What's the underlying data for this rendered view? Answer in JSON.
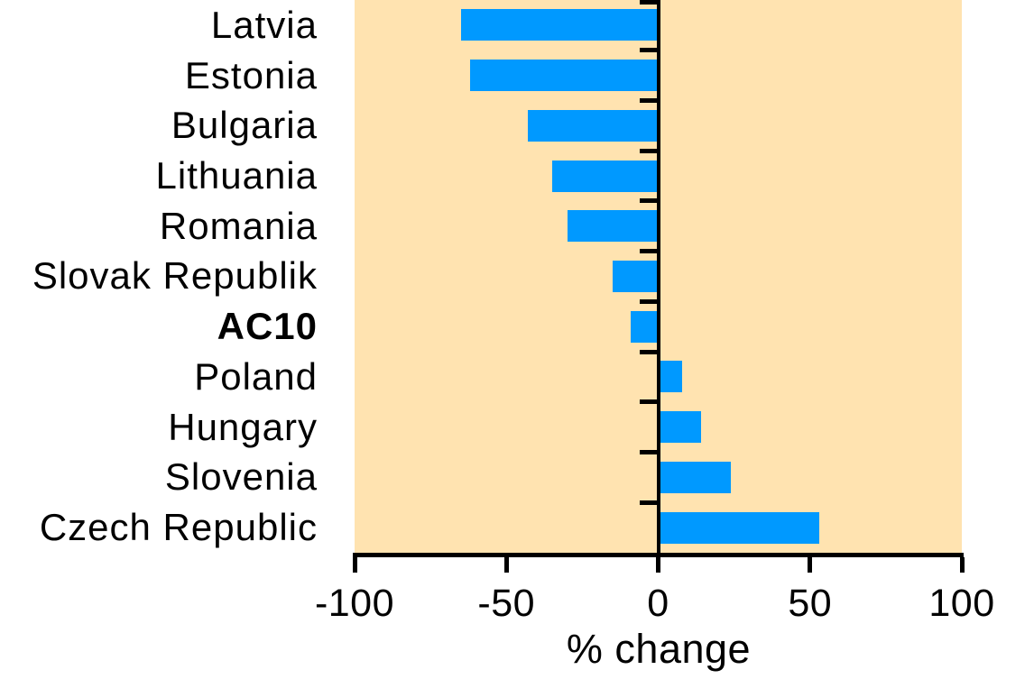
{
  "chart_data": {
    "type": "bar",
    "orientation": "horizontal",
    "title": "",
    "xlabel": "% change",
    "ylabel": "",
    "xlim": [
      -100,
      100
    ],
    "x_ticks": [
      {
        "label": "-100",
        "value": -100
      },
      {
        "label": "-50",
        "value": -50
      },
      {
        "label": "0",
        "value": 0
      },
      {
        "label": "50",
        "value": 50
      },
      {
        "label": "100",
        "value": 100
      }
    ],
    "categories": [
      "Latvia",
      "Estonia",
      "Bulgaria",
      "Lithuania",
      "Romania",
      "Slovak Republik",
      "AC10",
      "Poland",
      "Hungary",
      "Slovenia",
      "Czech Republic"
    ],
    "values": [
      -65,
      -62,
      -43,
      -35,
      -30,
      -15,
      -9,
      8,
      14,
      24,
      53
    ],
    "bold_categories": [
      "AC10"
    ],
    "legend": null,
    "grid": false,
    "colors": {
      "bar": "#0099FF",
      "plot_background": "#FFE3B0",
      "axis": "#000000",
      "text": "#000000",
      "page_background": "#FFFFFF"
    }
  }
}
